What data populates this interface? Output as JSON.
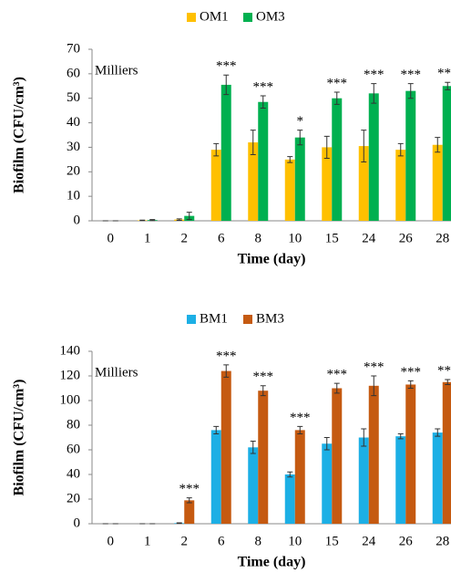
{
  "chart_data": [
    {
      "type": "bar",
      "xlabel": "Time (day)",
      "ylabel": "Biofilm (CFU/cm³)",
      "unit_label": "Milliers",
      "categories": [
        "0",
        "1",
        "2",
        "6",
        "8",
        "10",
        "15",
        "24",
        "26",
        "28"
      ],
      "series": [
        {
          "name": "OM1",
          "color": "#ffc000",
          "values": [
            0,
            0.2,
            0.5,
            29,
            32,
            25,
            30,
            30.5,
            29,
            31
          ],
          "errors": [
            0,
            0.1,
            0.3,
            2.5,
            5,
            1.2,
            4.5,
            6.5,
            2.5,
            3
          ]
        },
        {
          "name": "OM3",
          "color": "#00b050",
          "values": [
            0,
            0.3,
            2,
            55.5,
            48.5,
            34,
            50,
            52,
            53,
            55
          ],
          "errors": [
            0,
            0.2,
            1.5,
            4,
            2.5,
            3,
            2.5,
            4,
            3,
            1.5
          ]
        }
      ],
      "significance": [
        null,
        null,
        null,
        "***",
        "***",
        "*",
        "***",
        "***",
        "***",
        "***"
      ],
      "ylim": [
        0,
        70
      ],
      "yticks": [
        0,
        10,
        20,
        30,
        40,
        50,
        60,
        70
      ],
      "legend": "top"
    },
    {
      "type": "bar",
      "xlabel": "Time (day)",
      "ylabel": "Biofilm (CFU/cm³)",
      "unit_label": "Milliers",
      "categories": [
        "0",
        "1",
        "2",
        "6",
        "8",
        "10",
        "15",
        "24",
        "26",
        "28"
      ],
      "series": [
        {
          "name": "BM1",
          "color": "#1cafe5",
          "values": [
            0,
            0,
            0.5,
            76,
            62,
            40,
            65,
            70,
            71,
            74
          ],
          "errors": [
            0,
            0,
            0.2,
            3,
            5,
            2,
            5,
            7,
            2,
            3
          ]
        },
        {
          "name": "BM3",
          "color": "#c55a11",
          "values": [
            0,
            0,
            19,
            124,
            108,
            76,
            110,
            112,
            113,
            115
          ],
          "errors": [
            0,
            0,
            2,
            5,
            4,
            3,
            4,
            8,
            3,
            2
          ]
        }
      ],
      "significance": [
        null,
        null,
        "***",
        "***",
        "***",
        "***",
        "***",
        "***",
        "***",
        "***"
      ],
      "ylim": [
        0,
        140
      ],
      "yticks": [
        0,
        20,
        40,
        60,
        80,
        100,
        120,
        140
      ],
      "legend": "top"
    }
  ]
}
